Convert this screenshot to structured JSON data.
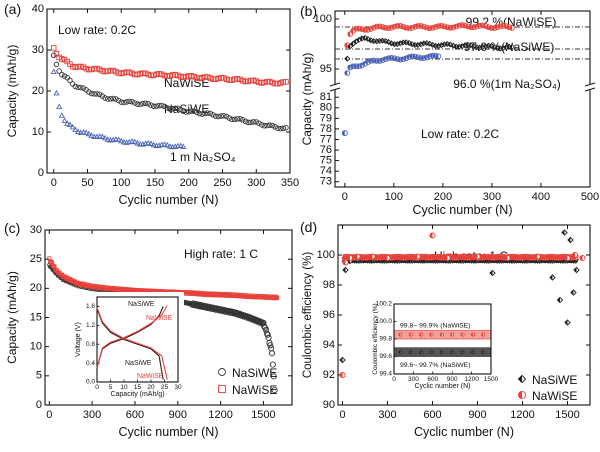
{
  "panels": [
    {
      "id": "a",
      "label": "(a)",
      "xlabel": "Cyclic number (N)",
      "ylabel": "Capacity (mAh/g)",
      "xlim": [
        -10,
        350
      ],
      "ylim": [
        0,
        40
      ],
      "xticks": [
        0,
        50,
        100,
        150,
        200,
        250,
        300,
        350
      ],
      "yticks": [
        0,
        10,
        20,
        30,
        40
      ],
      "annotations": [
        {
          "text": "Low rate: 0.2C"
        },
        {
          "text": "NaWiSE"
        },
        {
          "text": "NaSiWE"
        },
        {
          "text": "1 m Na₂SO₄"
        }
      ],
      "series": [
        {
          "name": "NaWiSE",
          "color": "#e8413a",
          "marker": "square",
          "x": [
            0,
            5,
            10,
            20,
            30,
            50,
            75,
            100,
            125,
            150,
            175,
            200,
            225,
            250,
            275,
            300,
            325,
            345
          ],
          "y": [
            30.5,
            29.0,
            28.0,
            27.0,
            26.0,
            25.5,
            25.0,
            24.5,
            24.2,
            24.0,
            23.8,
            23.5,
            23.2,
            23.0,
            22.7,
            22.3,
            22.0,
            22.0
          ]
        },
        {
          "name": "NaSiWE",
          "color": "#333333",
          "marker": "circle",
          "x": [
            0,
            5,
            10,
            20,
            30,
            50,
            75,
            100,
            125,
            150,
            175,
            200,
            225,
            250,
            275,
            300,
            325,
            345
          ],
          "y": [
            28.5,
            26.0,
            24.5,
            23.0,
            21.5,
            20.0,
            18.5,
            17.5,
            17.0,
            16.5,
            15.8,
            15.0,
            14.5,
            13.8,
            13.0,
            12.2,
            11.3,
            10.8
          ]
        },
        {
          "name": "1 m Na₂SO₄",
          "color": "#4b63b5",
          "marker": "triangle",
          "x": [
            0,
            5,
            10,
            15,
            20,
            30,
            40,
            50,
            75,
            100,
            125,
            150,
            175,
            195
          ],
          "y": [
            24.5,
            18.0,
            15.0,
            13.2,
            12.0,
            10.8,
            10.0,
            9.5,
            8.5,
            7.8,
            7.3,
            6.9,
            6.6,
            6.3
          ]
        }
      ]
    },
    {
      "id": "b",
      "label": "(b)",
      "xlabel": "Cyclic number (N)",
      "ylabel": "Capacity (mAh/g)",
      "xlim": [
        -20,
        500
      ],
      "xticks": [
        0,
        100,
        200,
        300,
        400,
        500
      ],
      "yticks_top": [
        95,
        100
      ],
      "yticks_bottom": [
        73,
        74,
        75,
        76,
        77,
        78,
        79,
        80,
        81
      ],
      "annotations": [
        {
          "text": "99.2 %(NaWiSE)"
        },
        {
          "text": "97.0 %(NaSiWE)"
        },
        {
          "text": "96.0 %(1m Na₂SO₄)"
        },
        {
          "text": "Low rate: 0.2C"
        }
      ],
      "reference_lines": [
        99.2,
        97.0,
        96.0
      ],
      "series": [
        {
          "name": "NaWiSE",
          "color": "#e8413a",
          "marker": "circle-half",
          "x": [
            5,
            10,
            20,
            40,
            60,
            80,
            100,
            150,
            200,
            250,
            300,
            345
          ],
          "y": [
            97.5,
            98.5,
            98.9,
            99.0,
            99.1,
            99.2,
            99.2,
            99.2,
            99.2,
            99.3,
            99.2,
            99.2
          ]
        },
        {
          "name": "NaSiWE",
          "color": "#222222",
          "marker": "diamond",
          "x": [
            5,
            10,
            20,
            40,
            60,
            80,
            100,
            150,
            200,
            250,
            300,
            345
          ],
          "y": [
            96.0,
            97.3,
            97.8,
            98.0,
            97.9,
            97.7,
            97.6,
            97.5,
            97.4,
            97.3,
            97.2,
            97.1
          ]
        },
        {
          "name": "1m Na₂SO₄",
          "color": "#4b63b5",
          "marker": "circle-half",
          "x": [
            5,
            10,
            20,
            40,
            60,
            80,
            100,
            125,
            150,
            175,
            195
          ],
          "y": [
            94.5,
            95.0,
            95.3,
            95.5,
            95.8,
            96.0,
            96.0,
            96.1,
            96.2,
            96.2,
            96.3
          ]
        }
      ],
      "outlier": {
        "x": 0,
        "y": 77.6
      }
    },
    {
      "id": "c",
      "label": "(c)",
      "xlabel": "Cyclic number (N)",
      "ylabel": "Capacity (mAh/g)",
      "xlim": [
        -30,
        1700
      ],
      "ylim": [
        0,
        30
      ],
      "xticks": [
        0,
        300,
        600,
        900,
        1200,
        1500
      ],
      "yticks": [
        0,
        5,
        10,
        15,
        20,
        25,
        30
      ],
      "annotations": [
        {
          "text": "High rate: 1 C"
        }
      ],
      "series": [
        {
          "name": "NaSiWE",
          "color": "#333333",
          "marker": "circle",
          "x": [
            0,
            50,
            100,
            200,
            300,
            400,
            500,
            600,
            700,
            800,
            900,
            1000,
            1100,
            1200,
            1300,
            1400,
            1450,
            1500,
            1530,
            1560,
            1580
          ],
          "y": [
            24,
            22.5,
            21.5,
            20.5,
            20.0,
            19.7,
            19.4,
            19.0,
            18.8,
            18.3,
            17.8,
            17.3,
            16.8,
            16.3,
            15.8,
            15.0,
            14.5,
            14.0,
            12.0,
            9.0,
            2.0
          ]
        },
        {
          "name": "NaWiSE",
          "color": "#e8413a",
          "marker": "square",
          "x": [
            0,
            50,
            100,
            200,
            300,
            400,
            500,
            600,
            700,
            800,
            900,
            1000,
            1100,
            1200,
            1300,
            1400,
            1500,
            1600
          ],
          "y": [
            25,
            23,
            22,
            20.8,
            20.3,
            20.0,
            19.8,
            19.6,
            19.5,
            19.4,
            19.3,
            19.2,
            19.0,
            18.9,
            18.8,
            18.6,
            18.5,
            18.4
          ]
        }
      ],
      "legend": [
        "NaSiWE",
        "NaWiSE"
      ],
      "inset": {
        "xlabel": "Capacity (mAh/g)",
        "ylabel": "Voltage (V)",
        "xlim": [
          0,
          30
        ],
        "ylim": [
          0.0,
          1.8
        ],
        "xticks": [
          0,
          5,
          10,
          15,
          20,
          25,
          30
        ],
        "yticks": [
          0.0,
          0.4,
          0.8,
          1.2,
          1.6
        ],
        "labels": [
          "NaSiWE",
          "NaWiSE",
          "NaSiWE",
          "NaWiSE"
        ],
        "series": [
          {
            "name": "NaSiWE",
            "color": "#222222",
            "charge_x": [
              0,
              2,
              5,
              10,
              15,
              20,
              23,
              24.5
            ],
            "charge_y": [
              0.3,
              0.7,
              0.82,
              0.92,
              1.05,
              1.22,
              1.4,
              1.6
            ],
            "discharge_x": [
              0,
              2,
              5,
              10,
              15,
              20,
              23,
              24.5
            ],
            "discharge_y": [
              1.55,
              1.25,
              1.05,
              0.9,
              0.8,
              0.7,
              0.55,
              0.05
            ]
          },
          {
            "name": "NaWiSE",
            "color": "#e8413a",
            "charge_x": [
              0,
              2,
              5,
              10,
              15,
              20,
              24,
              26
            ],
            "charge_y": [
              0.3,
              0.72,
              0.84,
              0.94,
              1.07,
              1.24,
              1.42,
              1.62
            ],
            "discharge_x": [
              0,
              2,
              5,
              10,
              15,
              20,
              24,
              26
            ],
            "discharge_y": [
              1.58,
              1.28,
              1.08,
              0.92,
              0.82,
              0.72,
              0.55,
              0.05
            ]
          }
        ]
      }
    },
    {
      "id": "d",
      "label": "(d)",
      "xlabel": "Cyclic number (N)",
      "ylabel": "Coulombic efficiency (%)",
      "xlim": [
        -30,
        1650
      ],
      "ylim": [
        90,
        102
      ],
      "xticks": [
        0,
        300,
        600,
        900,
        1200,
        1500
      ],
      "yticks": [
        90,
        92,
        94,
        96,
        98,
        100
      ],
      "annotations": [
        {
          "text": "High rate: 1 C"
        }
      ],
      "legend": [
        "NaSiWE",
        "NaWiSE"
      ],
      "series": [
        {
          "name": "NaSiWE",
          "color": "#222222",
          "marker": "diamond",
          "x": [
            0,
            20,
            50,
            100,
            200,
            300,
            500,
            700,
            900,
            1000,
            1100,
            1200,
            1300,
            1400,
            1450,
            1480,
            1500,
            1520,
            1540,
            1560
          ],
          "y": [
            93.0,
            99.0,
            99.6,
            99.7,
            99.7,
            99.7,
            99.7,
            99.7,
            99.7,
            98.8,
            99.7,
            99.7,
            99.7,
            98.5,
            97.0,
            101.5,
            95.5,
            101.0,
            97.5,
            99.0
          ]
        },
        {
          "name": "NaWiSE",
          "color": "#e8413a",
          "marker": "circle-half",
          "x": [
            0,
            20,
            50,
            100,
            200,
            300,
            500,
            600,
            700,
            900,
            1100,
            1300,
            1500,
            1550,
            1600
          ],
          "y": [
            92.0,
            99.5,
            99.8,
            99.9,
            99.9,
            99.8,
            99.9,
            101.3,
            99.8,
            99.9,
            99.8,
            99.9,
            99.8,
            100.0,
            99.8
          ]
        }
      ],
      "inset": {
        "xlabel": "Cyclic number (N)",
        "ylabel": "Coulombic efficiency (%)",
        "xlim": [
          0,
          1500
        ],
        "ylim": [
          99.4,
          100.2
        ],
        "xticks": [
          0,
          300,
          600,
          900,
          1200,
          1500
        ],
        "yticks": [
          99.4,
          99.6,
          99.8,
          100.0,
          100.2
        ],
        "bands": [
          {
            "label": "99.8~ 99.9% (NaWiSE)",
            "range": [
              99.8,
              99.9
            ],
            "color": "#e8413a"
          },
          {
            "label": "99.6~ 99.7% (NaSiWE)",
            "range": [
              99.6,
              99.7
            ],
            "color": "#222222"
          }
        ]
      }
    }
  ]
}
